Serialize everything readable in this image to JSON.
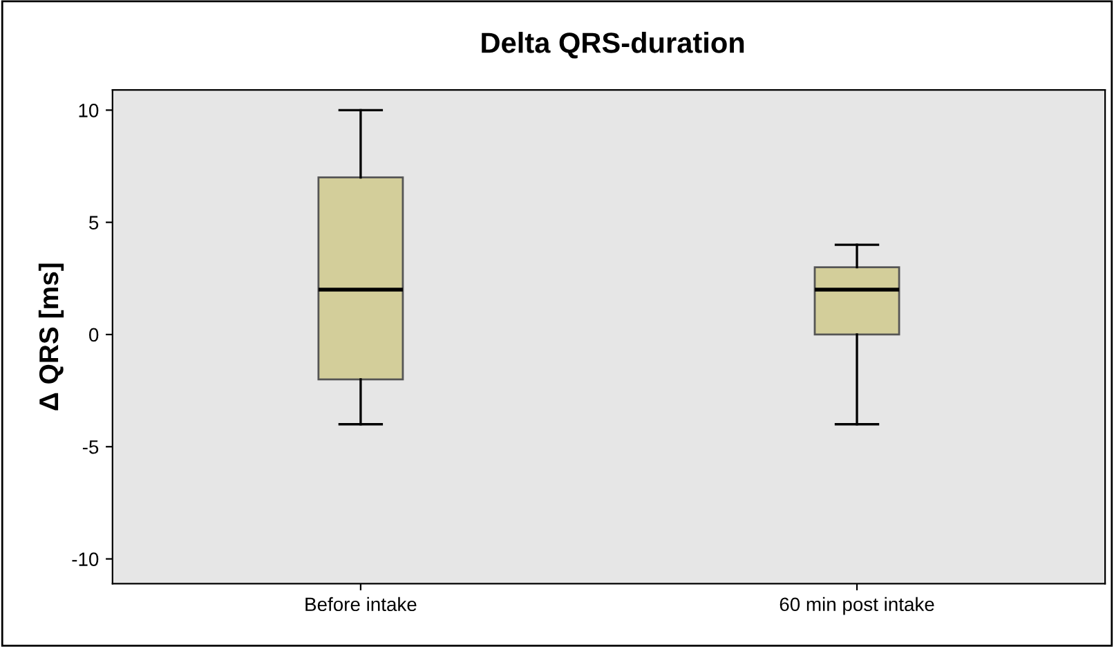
{
  "chart_data": {
    "type": "box",
    "title": "Delta QRS-duration",
    "ylabel": "Δ QRS [ms]",
    "categories": [
      "Before intake",
      "60 min post intake"
    ],
    "boxes": [
      {
        "low": -4,
        "q1": -2,
        "median": 2,
        "q3": 7,
        "high": 10
      },
      {
        "low": -4,
        "q1": 0,
        "median": 2,
        "q3": 3,
        "high": 4
      }
    ],
    "color": "#d3ce9a",
    "ylim": [
      -11.1,
      10.9
    ],
    "yticks": [
      -10,
      -5,
      0,
      5,
      10
    ],
    "grid": false
  }
}
